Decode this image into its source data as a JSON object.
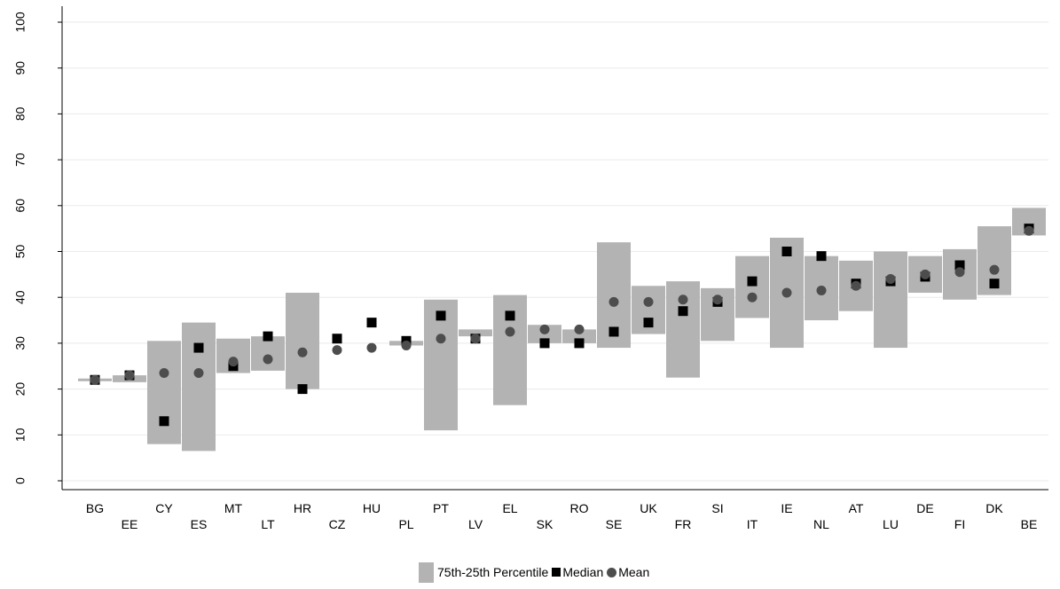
{
  "chart_data": {
    "type": "box-range",
    "categories": [
      "BG",
      "EE",
      "CY",
      "ES",
      "MT",
      "LT",
      "HR",
      "CZ",
      "HU",
      "PL",
      "PT",
      "LV",
      "EL",
      "SK",
      "RO",
      "SE",
      "UK",
      "FR",
      "SI",
      "IT",
      "IE",
      "NL",
      "AT",
      "LU",
      "DE",
      "FI",
      "DK",
      "BE"
    ],
    "p25": [
      22,
      21.5,
      8,
      6.5,
      23.5,
      24,
      20,
      null,
      null,
      29.5,
      11,
      31.5,
      16.5,
      30,
      30,
      29,
      32,
      22.5,
      30.5,
      35.5,
      29,
      35,
      37,
      29,
      41,
      39.5,
      40.5,
      53.5
    ],
    "p75": [
      22,
      23,
      30.5,
      34.5,
      31,
      31.5,
      41,
      null,
      null,
      30.5,
      39.5,
      33,
      40.5,
      34,
      33,
      52,
      42.5,
      43.5,
      42,
      49,
      53,
      49,
      48,
      50,
      49,
      50.5,
      55.5,
      59.5
    ],
    "median": [
      22,
      23,
      13,
      29,
      25,
      31.5,
      20,
      31,
      34.5,
      30.5,
      36,
      31,
      36,
      30,
      30,
      32.5,
      34.5,
      37,
      39,
      43.5,
      50,
      49,
      43,
      43.5,
      44.5,
      47,
      43,
      55
    ],
    "mean": [
      22,
      23,
      23.5,
      23.5,
      26,
      26.5,
      28,
      28.5,
      29,
      29.5,
      31,
      31,
      32.5,
      33,
      33,
      39,
      39,
      39.5,
      39.5,
      40,
      41,
      41.5,
      42.5,
      44,
      45,
      45.5,
      46,
      54.5
    ],
    "ylim": [
      0,
      100
    ],
    "yticks": [
      "0",
      "10",
      "20",
      "30",
      "40",
      "50",
      "60",
      "70",
      "80",
      "90",
      "100"
    ],
    "grid": true,
    "legend_position": "bottom",
    "legend": {
      "range_label": "75th-25th Percentile",
      "median_label": "Median",
      "mean_label": "Mean"
    },
    "colors": {
      "range": "#b3b3b3",
      "median": "#000000",
      "mean": "#4d4d4d",
      "grid": "#eaeaea"
    }
  }
}
